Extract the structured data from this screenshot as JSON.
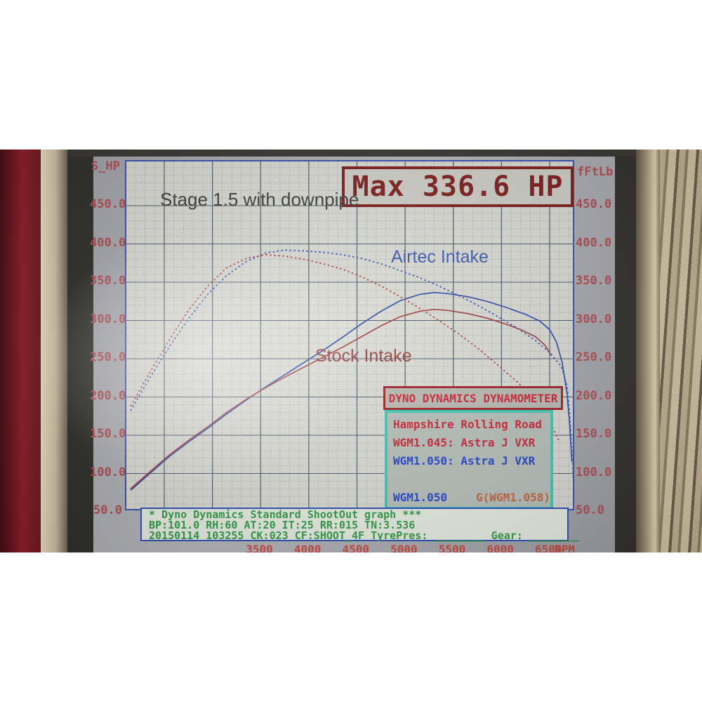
{
  "chart_data": {
    "type": "line",
    "title": "Stage 1.5 with downpipe",
    "max_label": "Max 336.6 HP",
    "x_axis": {
      "label": "RPM",
      "ticks": [
        3500,
        4000,
        4500,
        5000,
        5500,
        6000,
        6500
      ],
      "range": [
        2100,
        6750
      ],
      "grid": true
    },
    "y_left": {
      "label": "S_HP",
      "ticks": [
        450,
        400,
        350,
        300,
        250,
        200,
        150,
        100,
        50
      ],
      "range": [
        50,
        500
      ]
    },
    "y_right": {
      "label": "fFtLb",
      "ticks": [
        450,
        400,
        350,
        300,
        250,
        200,
        150,
        100,
        50
      ],
      "range": [
        50,
        500
      ]
    },
    "annotations": [
      {
        "text": "Airtec Intake",
        "color": "#3d57b2"
      },
      {
        "text": "Stock Intake",
        "color": "#96403f"
      }
    ],
    "series": [
      {
        "name": "Airtec Intake power (HP)",
        "color": "#2d49a6",
        "style": "solid",
        "points": [
          [
            2150,
            78
          ],
          [
            2350,
            100
          ],
          [
            2550,
            122
          ],
          [
            2750,
            141
          ],
          [
            2950,
            159
          ],
          [
            3150,
            178
          ],
          [
            3350,
            196
          ],
          [
            3550,
            213
          ],
          [
            3750,
            229
          ],
          [
            3950,
            245
          ],
          [
            4150,
            261
          ],
          [
            4350,
            278
          ],
          [
            4550,
            296
          ],
          [
            4750,
            312
          ],
          [
            4950,
            326
          ],
          [
            5150,
            334
          ],
          [
            5300,
            336.6
          ],
          [
            5450,
            335
          ],
          [
            5650,
            331
          ],
          [
            5850,
            325
          ],
          [
            6050,
            317
          ],
          [
            6250,
            308
          ],
          [
            6400,
            299
          ],
          [
            6500,
            288
          ],
          [
            6570,
            272
          ],
          [
            6630,
            245
          ],
          [
            6680,
            205
          ],
          [
            6710,
            160
          ],
          [
            6730,
            115
          ]
        ]
      },
      {
        "name": "Stock Intake power (HP)",
        "color": "#a03c3c",
        "style": "solid",
        "points": [
          [
            2150,
            80
          ],
          [
            2350,
            102
          ],
          [
            2550,
            124
          ],
          [
            2750,
            143
          ],
          [
            2950,
            161
          ],
          [
            3150,
            180
          ],
          [
            3350,
            197
          ],
          [
            3550,
            212
          ],
          [
            3750,
            226
          ],
          [
            3950,
            239
          ],
          [
            4150,
            252
          ],
          [
            4350,
            265
          ],
          [
            4550,
            279
          ],
          [
            4750,
            293
          ],
          [
            4950,
            305
          ],
          [
            5150,
            312
          ],
          [
            5300,
            314.5
          ],
          [
            5450,
            313
          ],
          [
            5650,
            309
          ],
          [
            5850,
            303
          ],
          [
            6050,
            295
          ],
          [
            6200,
            288
          ],
          [
            6350,
            279
          ],
          [
            6450,
            268
          ],
          [
            6520,
            254
          ]
        ]
      },
      {
        "name": "Airtec Intake torque (FtLb)",
        "color": "#3d59b4",
        "style": "dotted",
        "points": [
          [
            2150,
            182
          ],
          [
            2350,
            225
          ],
          [
            2550,
            265
          ],
          [
            2750,
            302
          ],
          [
            2950,
            334
          ],
          [
            3150,
            359
          ],
          [
            3350,
            377
          ],
          [
            3550,
            388
          ],
          [
            3750,
            392
          ],
          [
            3950,
            391
          ],
          [
            4150,
            389
          ],
          [
            4350,
            386
          ],
          [
            4550,
            381
          ],
          [
            4750,
            374
          ],
          [
            4950,
            365
          ],
          [
            5150,
            356
          ],
          [
            5350,
            345
          ],
          [
            5550,
            333
          ],
          [
            5750,
            320
          ],
          [
            5950,
            306
          ],
          [
            6150,
            291
          ],
          [
            6350,
            274
          ],
          [
            6500,
            258
          ],
          [
            6620,
            240
          ],
          [
            6680,
            215
          ],
          [
            6710,
            175
          ],
          [
            6730,
            130
          ],
          [
            6745,
            95
          ]
        ]
      },
      {
        "name": "Stock Intake torque (FtLb)",
        "color": "#b04a48",
        "style": "dotted",
        "points": [
          [
            2150,
            188
          ],
          [
            2350,
            232
          ],
          [
            2550,
            274
          ],
          [
            2750,
            313
          ],
          [
            2950,
            345
          ],
          [
            3150,
            369
          ],
          [
            3350,
            381
          ],
          [
            3550,
            386
          ],
          [
            3750,
            384
          ],
          [
            3950,
            380
          ],
          [
            4150,
            374
          ],
          [
            4350,
            367
          ],
          [
            4550,
            357
          ],
          [
            4750,
            345
          ],
          [
            4950,
            331
          ],
          [
            5150,
            316
          ],
          [
            5350,
            300
          ],
          [
            5550,
            283
          ],
          [
            5750,
            264
          ],
          [
            5950,
            243
          ],
          [
            6150,
            221
          ],
          [
            6300,
            203
          ],
          [
            6400,
            188
          ],
          [
            6500,
            168
          ],
          [
            6600,
            142
          ]
        ]
      }
    ]
  },
  "legend_panel": {
    "header": "DYNO DYNAMICS DYNAMOMETER",
    "lines": [
      {
        "text": "Hampshire Rolling Road",
        "color": "#cc2333"
      },
      {
        "text": "WGM1.045: Astra J VXR",
        "color": "#cc2333"
      },
      {
        "text": "WGM1.050: Astra J VXR",
        "color": "#2443cc"
      }
    ],
    "footer_left": {
      "text": "WGM1.050",
      "color": "#2443cc"
    },
    "footer_right": {
      "text": "G(WGM1.058)",
      "color": "#c4623c"
    }
  },
  "status_panel": {
    "lines": [
      "* Dyno Dynamics Standard ShootOut graph ***",
      "BP:101.0 RH:60 AT:20 IT:25  RR:015 TN:3.536",
      "20150114 103255 CK:023 CF:SHOOT_4F TyrePres: ________   Gear: ________"
    ]
  },
  "colors": {
    "tick_label": "#b04a50",
    "max_box": "#7e1c1c",
    "grid_major": "#4d586a",
    "grid_minor": "#8a93a2",
    "plot_background": "#dadbd3",
    "status_text": "#2f9b45",
    "legend_border_teal": "#3ec9b4",
    "legend_border_red": "#a02028",
    "rpm_label": "#c8463c"
  }
}
